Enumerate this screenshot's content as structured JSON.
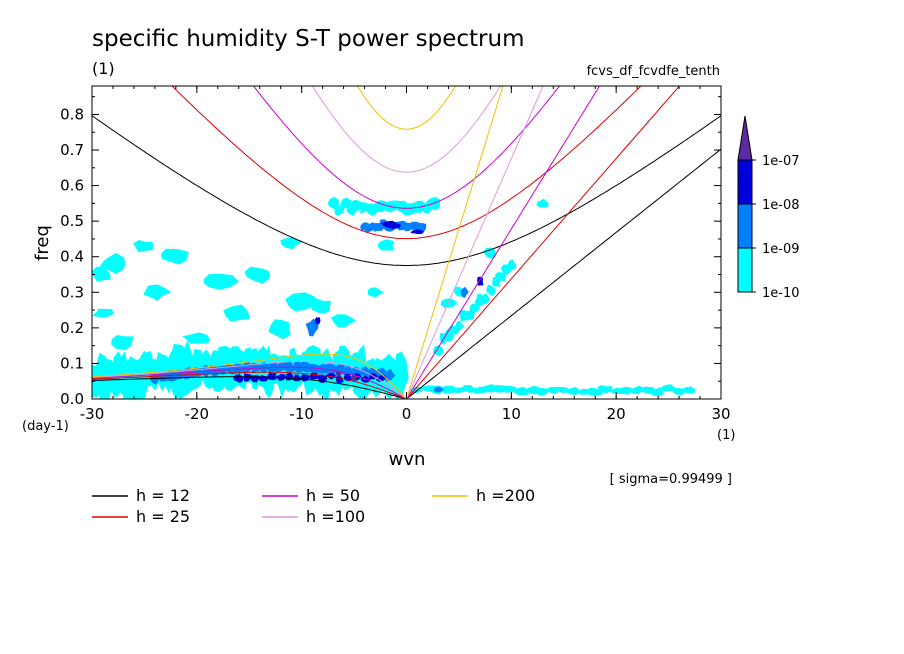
{
  "chart_data": {
    "type": "contour",
    "title": "specific humidity S-T power spectrum",
    "units_label": "(1)",
    "run_label": "fcvs_df_fcvdfe_tenth",
    "xlabel": "wvn",
    "ylabel": "freq",
    "x_units": "(1)",
    "y_units": "(day-1)",
    "xlim": [
      -30,
      30
    ],
    "ylim": [
      0,
      0.88
    ],
    "x_ticks": [
      -30,
      -20,
      -10,
      0,
      10,
      20,
      30
    ],
    "x_tick_labels": [
      "-30",
      "-20",
      "-10",
      "0",
      "10",
      "20",
      "30"
    ],
    "y_ticks": [
      0,
      0.1,
      0.2,
      0.3,
      0.4,
      0.5,
      0.6,
      0.7,
      0.8
    ],
    "y_tick_labels": [
      "0.0",
      "0.1",
      "0.2",
      "0.3",
      "0.4",
      "0.5",
      "0.6",
      "0.7",
      "0.8"
    ],
    "sigma_note": "[ sigma=0.99499 ]",
    "colorbar": {
      "levels": [
        "1e-10",
        "1e-09",
        "1e-08",
        "1e-07"
      ],
      "colors": [
        "#00ffff",
        "#0080ff",
        "#0000dd",
        "#5a2ca0"
      ]
    },
    "dispersion_curves": [
      {
        "name": "h = 12",
        "h": 12,
        "color": "#000000"
      },
      {
        "name": "h = 25",
        "h": 25,
        "color": "#dd0000"
      },
      {
        "name": "h = 50",
        "h": 50,
        "color": "#cc00cc"
      },
      {
        "name": "h =100",
        "h": 100,
        "color": "#dd99dd"
      },
      {
        "name": "h =200",
        "h": 200,
        "color": "#f0c000"
      }
    ],
    "shaded_regions": [
      {
        "level": "1e-10",
        "x": [
          -30,
          -22,
          -12,
          -7,
          -4,
          0
        ],
        "y": [
          0.09,
          0.12,
          0.14,
          0.12,
          0.08,
          0.0
        ]
      },
      {
        "level": "1e-09",
        "x": [
          -22,
          -12,
          -7,
          -3,
          0
        ],
        "y": [
          0.07,
          0.09,
          0.08,
          0.05,
          0.0
        ]
      },
      {
        "level": "1e-08",
        "x": [
          -14,
          -8,
          -4,
          -1
        ],
        "y": [
          0.05,
          0.07,
          0.05,
          0.02
        ]
      },
      {
        "level": "1e-09",
        "x": [
          -6,
          -2,
          3
        ],
        "y": [
          0.47,
          0.49,
          0.47
        ]
      },
      {
        "level": "1e-10",
        "x": [
          -8,
          -2,
          3
        ],
        "y": [
          0.54,
          0.55,
          0.52
        ]
      }
    ]
  }
}
